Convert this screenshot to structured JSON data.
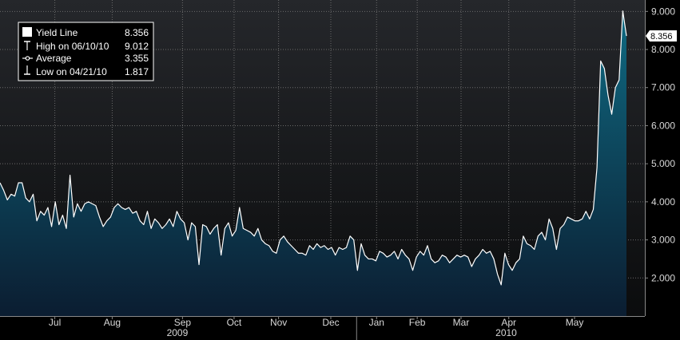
{
  "colors": {
    "background": "#000000",
    "plot_top": "#25272b",
    "plot_bottom": "#0b0c0d",
    "area_top": "#0f6a82",
    "area_bottom": "#0b1d31",
    "line": "#ffffff",
    "grid": "#6a6a6a"
  },
  "legend": {
    "items": [
      {
        "icon": "square-swatch-icon",
        "label": "Yield Line",
        "value": "8.356"
      },
      {
        "icon": "high-marker-icon",
        "label": "High on 06/10/10",
        "value": "9.012"
      },
      {
        "icon": "average-marker-icon",
        "label": "Average",
        "value": "3.355"
      },
      {
        "icon": "low-marker-icon",
        "label": "Low on 04/21/10",
        "value": "1.817"
      }
    ]
  },
  "last_value_label": "8.356",
  "chart_data": {
    "type": "area",
    "title": "",
    "xlabel": "",
    "ylabel": "",
    "ylim": [
      1.0,
      9.3
    ],
    "yticks": [
      "2.000",
      "3.000",
      "4.000",
      "5.000",
      "6.000",
      "7.000",
      "8.000",
      "9.000"
    ],
    "ytick_values": [
      2,
      3,
      4,
      5,
      6,
      7,
      8,
      9
    ],
    "xticks": [
      {
        "label": "Jul",
        "t": 0.085
      },
      {
        "label": "Aug",
        "t": 0.174
      },
      {
        "label": "Sep",
        "t": 0.283
      },
      {
        "label": "Oct",
        "t": 0.363
      },
      {
        "label": "Nov",
        "t": 0.432
      },
      {
        "label": "Dec",
        "t": 0.513
      },
      {
        "label": "Jan",
        "t": 0.584
      },
      {
        "label": "Feb",
        "t": 0.647
      },
      {
        "label": "Mar",
        "t": 0.715
      },
      {
        "label": "Apr",
        "t": 0.789
      },
      {
        "label": "May",
        "t": 0.891
      }
    ],
    "years": [
      {
        "label": "2009",
        "t": 0.275
      },
      {
        "label": "2010",
        "t": 0.785
      }
    ],
    "year_divider_t": 0.553,
    "grid": true,
    "legend_position": "top-left",
    "series": [
      {
        "name": "Yield Line",
        "values": [
          4.5,
          4.3,
          4.05,
          4.2,
          4.15,
          4.5,
          4.5,
          4.1,
          4.0,
          4.2,
          3.5,
          3.75,
          3.65,
          3.85,
          3.35,
          4.0,
          3.4,
          3.65,
          3.3,
          4.7,
          3.6,
          3.95,
          3.75,
          3.95,
          4.0,
          3.95,
          3.9,
          3.6,
          3.35,
          3.5,
          3.6,
          3.85,
          3.95,
          3.85,
          3.8,
          3.85,
          3.7,
          3.75,
          3.5,
          3.4,
          3.75,
          3.3,
          3.55,
          3.45,
          3.3,
          3.4,
          3.55,
          3.35,
          3.75,
          3.55,
          3.45,
          3.0,
          3.45,
          3.35,
          2.35,
          3.4,
          3.35,
          3.15,
          3.3,
          3.4,
          2.6,
          3.3,
          3.45,
          3.1,
          3.25,
          3.85,
          3.3,
          3.25,
          3.2,
          3.1,
          3.3,
          3.0,
          2.9,
          2.85,
          2.7,
          2.65,
          3.0,
          3.1,
          2.95,
          2.85,
          2.75,
          2.65,
          2.65,
          2.6,
          2.85,
          2.75,
          2.9,
          2.8,
          2.85,
          2.75,
          2.8,
          2.6,
          2.8,
          2.75,
          2.8,
          3.1,
          3.0,
          2.2,
          2.9,
          2.6,
          2.5,
          2.5,
          2.45,
          2.7,
          2.65,
          2.55,
          2.6,
          2.7,
          2.5,
          2.75,
          2.6,
          2.5,
          2.2,
          2.55,
          2.7,
          2.6,
          2.85,
          2.5,
          2.4,
          2.45,
          2.6,
          2.55,
          2.4,
          2.5,
          2.6,
          2.55,
          2.6,
          2.55,
          2.3,
          2.5,
          2.6,
          2.75,
          2.65,
          2.7,
          2.5,
          2.1,
          1.82,
          2.65,
          2.35,
          2.2,
          2.4,
          2.5,
          3.1,
          2.9,
          2.85,
          2.75,
          3.1,
          3.2,
          3.0,
          3.55,
          3.3,
          2.75,
          3.3,
          3.4,
          3.6,
          3.55,
          3.5,
          3.5,
          3.55,
          3.75,
          3.55,
          3.8,
          4.9,
          7.7,
          7.5,
          6.8,
          6.3,
          7.0,
          7.2,
          9.012,
          8.356
        ]
      }
    ]
  }
}
